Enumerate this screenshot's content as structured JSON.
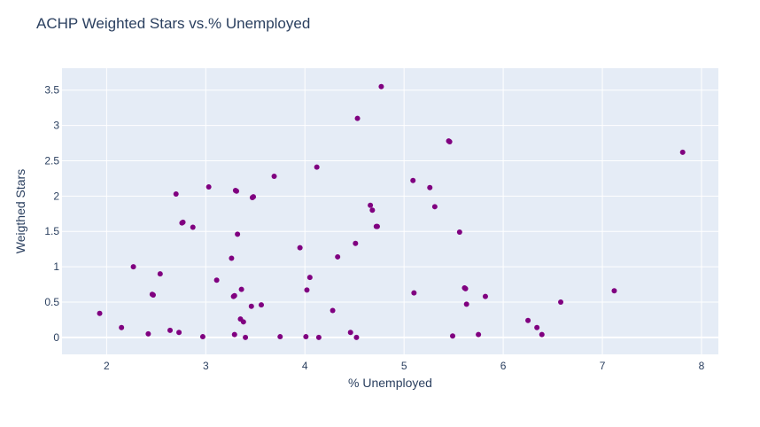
{
  "chart_data": {
    "type": "scatter",
    "title": "ACHP Weighted Stars vs.% Unemployed",
    "xlabel": "% Unemployed",
    "ylabel": "Weigthed Stars",
    "xlim": [
      1.55,
      8.17
    ],
    "ylim": [
      -0.24,
      3.81
    ],
    "xticks": [
      2,
      3,
      4,
      5,
      6,
      7,
      8
    ],
    "xtick_labels": [
      "2",
      "3",
      "4",
      "5",
      "6",
      "7",
      "8"
    ],
    "yticks": [
      0,
      0.5,
      1,
      1.5,
      2,
      2.5,
      3,
      3.5
    ],
    "ytick_labels": [
      "0",
      "0.5",
      "1",
      "1.5",
      "2",
      "2.5",
      "3",
      "3.5"
    ],
    "grid": true,
    "colors": {
      "marker": "#800080",
      "plot_bg": "#e5ecf6",
      "grid": "#ffffff",
      "text": "#2a3f5f"
    },
    "points": [
      {
        "x": 1.93,
        "y": 0.34
      },
      {
        "x": 2.15,
        "y": 0.14
      },
      {
        "x": 2.27,
        "y": 1.0
      },
      {
        "x": 2.42,
        "y": 0.05
      },
      {
        "x": 2.46,
        "y": 0.61
      },
      {
        "x": 2.47,
        "y": 0.6
      },
      {
        "x": 2.54,
        "y": 0.9
      },
      {
        "x": 2.64,
        "y": 0.1
      },
      {
        "x": 2.7,
        "y": 2.03
      },
      {
        "x": 2.73,
        "y": 0.07
      },
      {
        "x": 2.77,
        "y": 1.63
      },
      {
        "x": 2.76,
        "y": 1.62
      },
      {
        "x": 2.87,
        "y": 1.56
      },
      {
        "x": 2.97,
        "y": 0.01
      },
      {
        "x": 3.03,
        "y": 2.13
      },
      {
        "x": 3.11,
        "y": 0.81
      },
      {
        "x": 3.26,
        "y": 1.12
      },
      {
        "x": 3.29,
        "y": 0.59
      },
      {
        "x": 3.28,
        "y": 0.58
      },
      {
        "x": 3.29,
        "y": 0.04
      },
      {
        "x": 3.3,
        "y": 2.08
      },
      {
        "x": 3.31,
        "y": 2.07
      },
      {
        "x": 3.32,
        "y": 1.46
      },
      {
        "x": 3.35,
        "y": 0.26
      },
      {
        "x": 3.36,
        "y": 0.68
      },
      {
        "x": 3.38,
        "y": 0.22
      },
      {
        "x": 3.4,
        "y": 0.0
      },
      {
        "x": 3.46,
        "y": 0.44
      },
      {
        "x": 3.47,
        "y": 1.98
      },
      {
        "x": 3.48,
        "y": 1.99
      },
      {
        "x": 3.56,
        "y": 0.46
      },
      {
        "x": 3.69,
        "y": 2.28
      },
      {
        "x": 3.75,
        "y": 0.01
      },
      {
        "x": 3.95,
        "y": 1.27
      },
      {
        "x": 4.01,
        "y": 0.01
      },
      {
        "x": 4.02,
        "y": 0.67
      },
      {
        "x": 4.05,
        "y": 0.85
      },
      {
        "x": 4.12,
        "y": 2.41
      },
      {
        "x": 4.14,
        "y": 0.0
      },
      {
        "x": 4.28,
        "y": 0.38
      },
      {
        "x": 4.33,
        "y": 1.14
      },
      {
        "x": 4.46,
        "y": 0.07
      },
      {
        "x": 4.51,
        "y": 1.33
      },
      {
        "x": 4.53,
        "y": 3.1
      },
      {
        "x": 4.52,
        "y": 0.0
      },
      {
        "x": 4.66,
        "y": 1.87
      },
      {
        "x": 4.68,
        "y": 1.8
      },
      {
        "x": 4.72,
        "y": 1.57
      },
      {
        "x": 4.73,
        "y": 1.57
      },
      {
        "x": 4.77,
        "y": 3.55
      },
      {
        "x": 5.09,
        "y": 2.22
      },
      {
        "x": 5.1,
        "y": 0.63
      },
      {
        "x": 5.26,
        "y": 2.12
      },
      {
        "x": 5.31,
        "y": 1.85
      },
      {
        "x": 5.45,
        "y": 2.78
      },
      {
        "x": 5.46,
        "y": 2.77
      },
      {
        "x": 5.49,
        "y": 0.02
      },
      {
        "x": 5.56,
        "y": 1.49
      },
      {
        "x": 5.61,
        "y": 0.7
      },
      {
        "x": 5.62,
        "y": 0.69
      },
      {
        "x": 5.63,
        "y": 0.47
      },
      {
        "x": 5.75,
        "y": 0.04
      },
      {
        "x": 5.82,
        "y": 0.58
      },
      {
        "x": 6.25,
        "y": 0.24
      },
      {
        "x": 6.34,
        "y": 0.14
      },
      {
        "x": 6.39,
        "y": 0.04
      },
      {
        "x": 6.58,
        "y": 0.5
      },
      {
        "x": 7.12,
        "y": 0.66
      },
      {
        "x": 7.81,
        "y": 2.62
      }
    ]
  }
}
